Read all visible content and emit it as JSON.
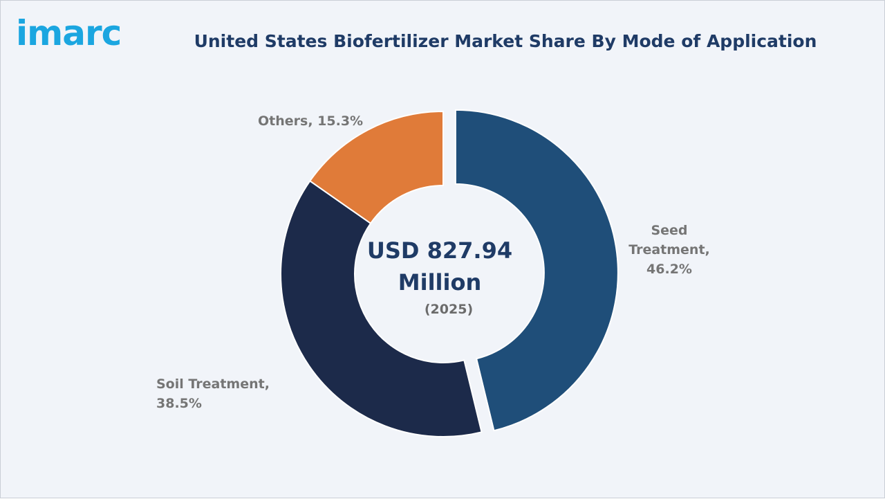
{
  "logo": {
    "text": "imarc"
  },
  "chart_data": {
    "type": "pie",
    "title": "United States Biofertilizer Market Share By Mode of Application",
    "center_label": {
      "value": "USD 827.94 Million",
      "year": "(2025)"
    },
    "slices": [
      {
        "label": "Seed Treatment",
        "value": 46.2,
        "display": "Seed Treatment, 46.2%",
        "color": "#1f4e79",
        "exploded": true
      },
      {
        "label": "Soil Treatment",
        "value": 38.5,
        "display": "Soil Treatment, 38.5%",
        "color": "#1c2a4a",
        "exploded": false
      },
      {
        "label": "Others",
        "value": 15.3,
        "display": "Others, 15.3%",
        "color": "#e07b39",
        "exploded": false
      }
    ]
  }
}
